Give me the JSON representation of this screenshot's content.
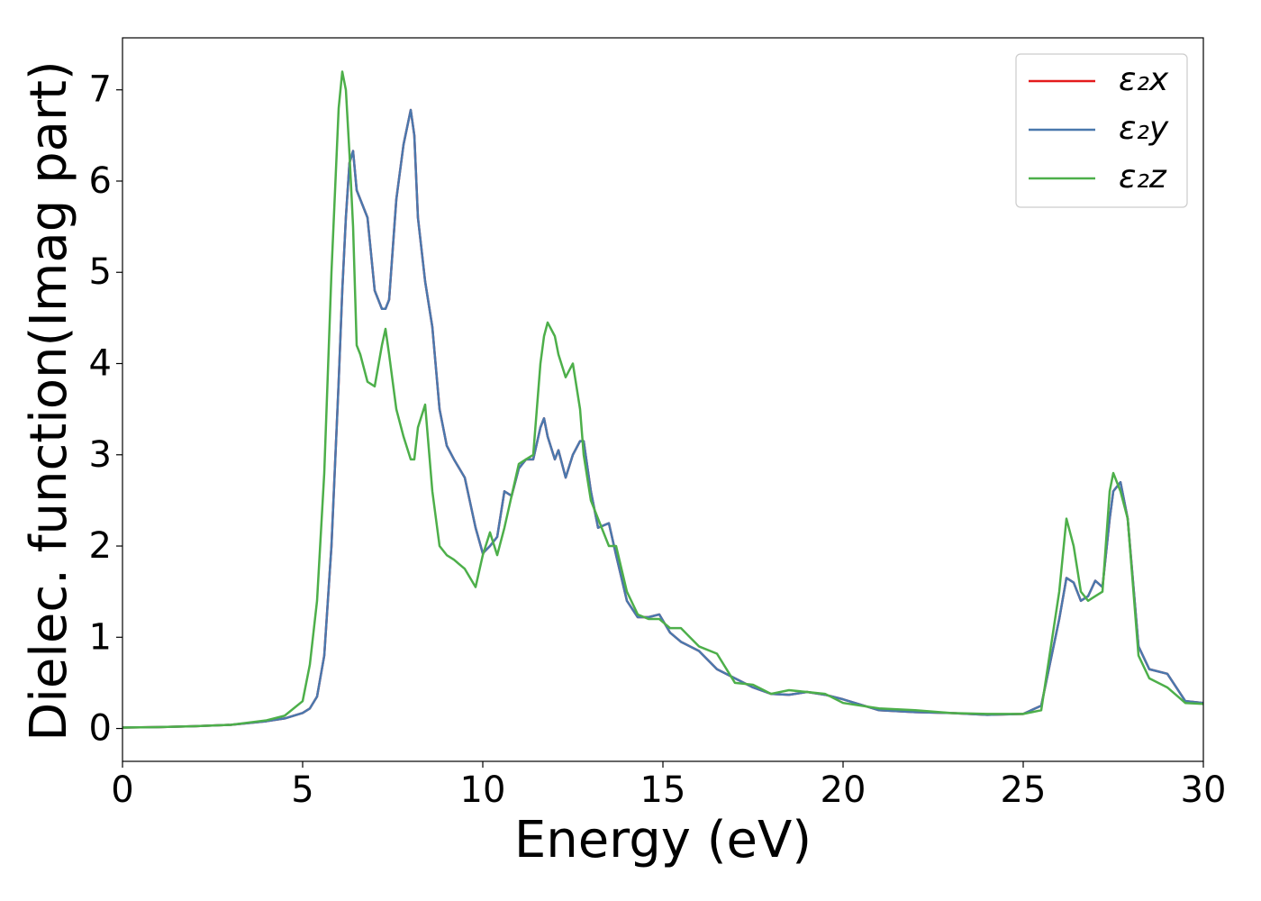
{
  "chart_data": {
    "type": "line",
    "x_label": "Energy (eV)",
    "y_label": "Dielec. function(Imag part)",
    "x": [
      0,
      1,
      2,
      3,
      4,
      4.5,
      5,
      5.2,
      5.4,
      5.6,
      5.8,
      6.0,
      6.1,
      6.2,
      6.3,
      6.4,
      6.5,
      6.6,
      6.8,
      7.0,
      7.2,
      7.3,
      7.4,
      7.6,
      7.8,
      8.0,
      8.1,
      8.2,
      8.4,
      8.6,
      8.8,
      9.0,
      9.2,
      9.5,
      9.8,
      10.0,
      10.2,
      10.4,
      10.6,
      10.8,
      11.0,
      11.2,
      11.4,
      11.6,
      11.7,
      11.8,
      12.0,
      12.1,
      12.3,
      12.5,
      12.7,
      12.8,
      13.0,
      13.2,
      13.5,
      13.7,
      14.0,
      14.3,
      14.6,
      14.9,
      15.2,
      15.5,
      16.0,
      16.5,
      17.0,
      17.5,
      18.0,
      18.5,
      19.0,
      19.5,
      20.0,
      21,
      22,
      23,
      24,
      25,
      25.5,
      26.0,
      26.2,
      26.4,
      26.6,
      26.8,
      27.0,
      27.2,
      27.4,
      27.5,
      27.7,
      27.9,
      28.2,
      28.5,
      29.0,
      29.5,
      30
    ],
    "series": [
      {
        "name": "ε₂x",
        "color": "#e41a1c",
        "values": [
          0.01,
          0.015,
          0.025,
          0.04,
          0.08,
          0.11,
          0.17,
          0.22,
          0.35,
          0.8,
          2.0,
          3.8,
          4.8,
          5.6,
          6.2,
          6.33,
          5.9,
          5.8,
          5.6,
          4.8,
          4.6,
          4.6,
          4.7,
          5.8,
          6.4,
          6.78,
          6.5,
          5.6,
          4.9,
          4.4,
          3.5,
          3.1,
          2.95,
          2.75,
          2.2,
          1.92,
          2.0,
          2.1,
          2.6,
          2.55,
          2.85,
          2.95,
          2.95,
          3.3,
          3.4,
          3.2,
          2.95,
          3.05,
          2.75,
          3.0,
          3.15,
          3.15,
          2.6,
          2.2,
          2.25,
          1.9,
          1.4,
          1.22,
          1.22,
          1.25,
          1.05,
          0.95,
          0.85,
          0.65,
          0.55,
          0.45,
          0.38,
          0.37,
          0.4,
          0.37,
          0.32,
          0.2,
          0.18,
          0.17,
          0.15,
          0.16,
          0.25,
          1.2,
          1.65,
          1.6,
          1.4,
          1.45,
          1.62,
          1.55,
          2.3,
          2.6,
          2.7,
          2.3,
          0.9,
          0.65,
          0.6,
          0.3,
          0.28
        ]
      },
      {
        "name": "ε₂y",
        "color": "#4a78ad",
        "values": [
          0.01,
          0.015,
          0.025,
          0.04,
          0.08,
          0.11,
          0.17,
          0.22,
          0.35,
          0.8,
          2.0,
          3.8,
          4.8,
          5.6,
          6.2,
          6.33,
          5.9,
          5.8,
          5.6,
          4.8,
          4.6,
          4.6,
          4.7,
          5.8,
          6.4,
          6.78,
          6.5,
          5.6,
          4.9,
          4.4,
          3.5,
          3.1,
          2.95,
          2.75,
          2.2,
          1.92,
          2.0,
          2.1,
          2.6,
          2.55,
          2.85,
          2.95,
          2.95,
          3.3,
          3.4,
          3.2,
          2.95,
          3.05,
          2.75,
          3.0,
          3.15,
          3.15,
          2.6,
          2.2,
          2.25,
          1.9,
          1.4,
          1.22,
          1.22,
          1.25,
          1.05,
          0.95,
          0.85,
          0.65,
          0.55,
          0.45,
          0.38,
          0.37,
          0.4,
          0.37,
          0.32,
          0.2,
          0.18,
          0.17,
          0.15,
          0.16,
          0.25,
          1.2,
          1.65,
          1.6,
          1.4,
          1.45,
          1.62,
          1.55,
          2.3,
          2.6,
          2.7,
          2.3,
          0.9,
          0.65,
          0.6,
          0.3,
          0.28
        ]
      },
      {
        "name": "ε₂z",
        "color": "#4daf4a",
        "values": [
          0.01,
          0.015,
          0.025,
          0.04,
          0.09,
          0.14,
          0.3,
          0.7,
          1.4,
          2.8,
          5.0,
          6.8,
          7.2,
          7.0,
          6.3,
          5.5,
          4.2,
          4.1,
          3.8,
          3.75,
          4.2,
          4.38,
          4.1,
          3.5,
          3.2,
          2.95,
          2.95,
          3.3,
          3.55,
          2.6,
          2.0,
          1.9,
          1.85,
          1.75,
          1.55,
          1.9,
          2.15,
          1.9,
          2.2,
          2.55,
          2.9,
          2.95,
          3.0,
          4.0,
          4.3,
          4.45,
          4.3,
          4.1,
          3.85,
          4.0,
          3.5,
          3.0,
          2.5,
          2.3,
          2.0,
          2.0,
          1.5,
          1.25,
          1.2,
          1.2,
          1.1,
          1.1,
          0.9,
          0.82,
          0.5,
          0.48,
          0.38,
          0.42,
          0.4,
          0.38,
          0.28,
          0.22,
          0.2,
          0.17,
          0.16,
          0.16,
          0.2,
          1.5,
          2.3,
          2.0,
          1.5,
          1.4,
          1.45,
          1.5,
          2.6,
          2.8,
          2.6,
          2.3,
          0.8,
          0.55,
          0.45,
          0.28,
          0.27
        ]
      }
    ],
    "xlim": [
      0,
      30
    ],
    "ylim": [
      -0.36,
      7.57
    ],
    "xticks": [
      0,
      5,
      10,
      15,
      20,
      25,
      30
    ],
    "yticks": [
      0,
      1,
      2,
      3,
      4,
      5,
      6,
      7
    ],
    "grid": false,
    "legend": "upper right"
  }
}
